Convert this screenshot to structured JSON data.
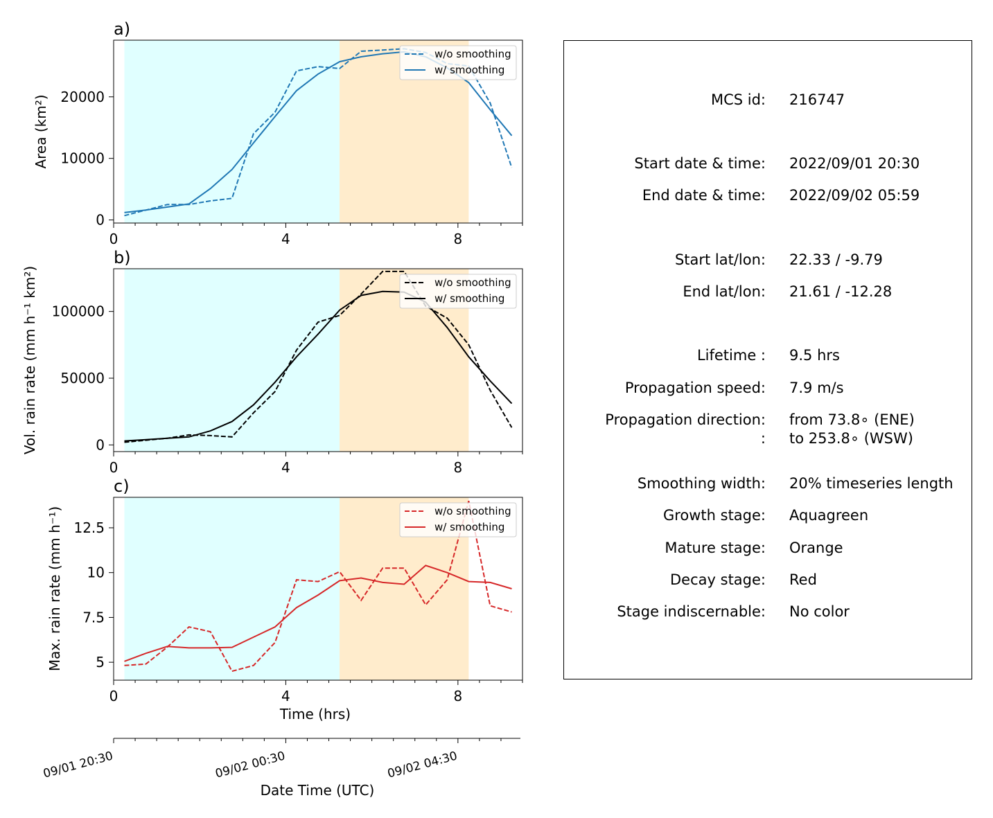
{
  "chart_data": [
    {
      "type": "line",
      "panel_label": "a)",
      "xlabel": "",
      "ylabel": "Area  (km²)",
      "xlim": [
        0,
        9.5
      ],
      "ylim": [
        -500,
        29200
      ],
      "xticks": [
        0,
        4,
        8
      ],
      "yticks": [
        0,
        10000,
        20000
      ],
      "x": [
        0.25,
        0.75,
        1.25,
        1.75,
        2.25,
        2.75,
        3.25,
        3.75,
        4.25,
        4.75,
        5.25,
        5.75,
        6.25,
        6.75,
        7.25,
        7.75,
        8.25,
        8.75,
        9.25
      ],
      "series": [
        {
          "name": "w/o smoothing",
          "style": "dashed",
          "color": "#1f77b4",
          "values": [
            700,
            1600,
            2500,
            2500,
            3100,
            3500,
            14000,
            17500,
            24200,
            24900,
            24600,
            27400,
            27600,
            27800,
            27200,
            25400,
            25000,
            19000,
            8500
          ]
        },
        {
          "name": "w/ smoothing",
          "style": "solid",
          "color": "#1f77b4",
          "values": [
            1200,
            1600,
            2100,
            2600,
            5100,
            8200,
            12500,
            16800,
            21000,
            23700,
            25700,
            26500,
            27000,
            27300,
            26500,
            24700,
            22300,
            17900,
            13700
          ]
        }
      ],
      "stages": [
        {
          "name": "growth",
          "from": 0.25,
          "to": 5.25,
          "color": "#e0ffff"
        },
        {
          "name": "mature",
          "from": 5.25,
          "to": 8.25,
          "color": "#ffeccc"
        }
      ]
    },
    {
      "type": "line",
      "panel_label": "b)",
      "xlabel": "",
      "ylabel": "Vol. rain rate (mm h⁻¹ km²)",
      "xlim": [
        0,
        9.5
      ],
      "ylim": [
        -5000,
        132000
      ],
      "xticks": [
        0,
        4,
        8
      ],
      "yticks": [
        0,
        50000,
        100000
      ],
      "x": [
        0.25,
        0.75,
        1.25,
        1.75,
        2.25,
        2.75,
        3.25,
        3.75,
        4.25,
        4.75,
        5.25,
        5.75,
        6.25,
        6.75,
        7.25,
        7.75,
        8.25,
        8.75,
        9.25
      ],
      "series": [
        {
          "name": "w/o smoothing",
          "style": "dashed",
          "color": "#000000",
          "values": [
            2000,
            3500,
            5000,
            7500,
            7000,
            6000,
            24000,
            40000,
            71000,
            92000,
            97000,
            113000,
            130000,
            130000,
            104000,
            95000,
            75000,
            41000,
            13000
          ]
        },
        {
          "name": "w/ smoothing",
          "style": "solid",
          "color": "#000000",
          "values": [
            3000,
            4000,
            5000,
            6000,
            10500,
            17500,
            30000,
            47000,
            66000,
            83000,
            101000,
            112000,
            115000,
            114500,
            107000,
            88000,
            66000,
            48000,
            31000
          ]
        }
      ],
      "stages": [
        {
          "name": "growth",
          "from": 0.25,
          "to": 5.25,
          "color": "#e0ffff"
        },
        {
          "name": "mature",
          "from": 5.25,
          "to": 8.25,
          "color": "#ffeccc"
        }
      ]
    },
    {
      "type": "line",
      "panel_label": "c)",
      "xlabel": "Time (hrs)",
      "ylabel": "Max. rain rate  (mm h⁻¹)",
      "xlim": [
        0,
        9.5
      ],
      "ylim": [
        4.0,
        14.2
      ],
      "xticks": [
        0,
        4,
        8
      ],
      "yticks": [
        5.0,
        7.5,
        10.0,
        12.5
      ],
      "x": [
        0.25,
        0.75,
        1.25,
        1.75,
        2.25,
        2.75,
        3.25,
        3.75,
        4.25,
        4.75,
        5.25,
        5.75,
        6.25,
        6.75,
        7.25,
        7.75,
        8.25,
        8.75,
        9.25
      ],
      "series": [
        {
          "name": "w/o smoothing",
          "style": "dashed",
          "color": "#d62728",
          "values": [
            4.82,
            4.9,
            5.85,
            6.97,
            6.7,
            4.5,
            4.82,
            6.1,
            9.6,
            9.5,
            10.05,
            8.45,
            10.25,
            10.25,
            8.2,
            9.6,
            14.0,
            8.15,
            7.8
          ]
        },
        {
          "name": "w/ smoothing",
          "style": "solid",
          "color": "#d62728",
          "values": [
            5.05,
            5.5,
            5.88,
            5.8,
            5.8,
            5.83,
            6.4,
            6.97,
            8.05,
            8.75,
            9.55,
            9.7,
            9.45,
            9.35,
            10.4,
            10.0,
            9.5,
            9.45,
            9.1
          ]
        }
      ],
      "stages": [
        {
          "name": "growth",
          "from": 0.25,
          "to": 5.25,
          "color": "#e0ffff"
        },
        {
          "name": "mature",
          "from": 5.25,
          "to": 8.25,
          "color": "#ffeccc"
        }
      ]
    }
  ],
  "date_axis": {
    "label": "Date Time (UTC)",
    "ticks": [
      {
        "hours": 0,
        "label": "09/01 20:30"
      },
      {
        "hours": 4,
        "label": "09/02 00:30"
      },
      {
        "hours": 8,
        "label": "09/02 04:30"
      }
    ]
  },
  "info": {
    "rows": [
      {
        "key": "MCS id:",
        "value": "216747"
      },
      {
        "key": "Start date & time:",
        "value": "2022/09/01 20:30"
      },
      {
        "key": "End date & time:",
        "value": "2022/09/02 05:59"
      },
      {
        "key": "Start lat/lon:",
        "value": "22.33 / -9.79"
      },
      {
        "key": "End lat/lon:",
        "value": "21.61 / -12.28"
      },
      {
        "key": "Lifetime :",
        "value": "9.5 hrs"
      },
      {
        "key": "Propagation speed:",
        "value": "7.9 m/s"
      },
      {
        "key": "Propagation direction:",
        "value": "from  73.8∘ (ENE)"
      },
      {
        "key": ":",
        "value": "to   253.8∘ (WSW)"
      },
      {
        "key": "Smoothing width:",
        "value": "20% timeseries length"
      },
      {
        "key": "Growth stage:",
        "value": "Aquagreen"
      },
      {
        "key": "Mature stage:",
        "value": "Orange"
      },
      {
        "key": "Decay stage:",
        "value": "Red"
      },
      {
        "key": "Stage indiscernable:",
        "value": "No color"
      }
    ]
  }
}
